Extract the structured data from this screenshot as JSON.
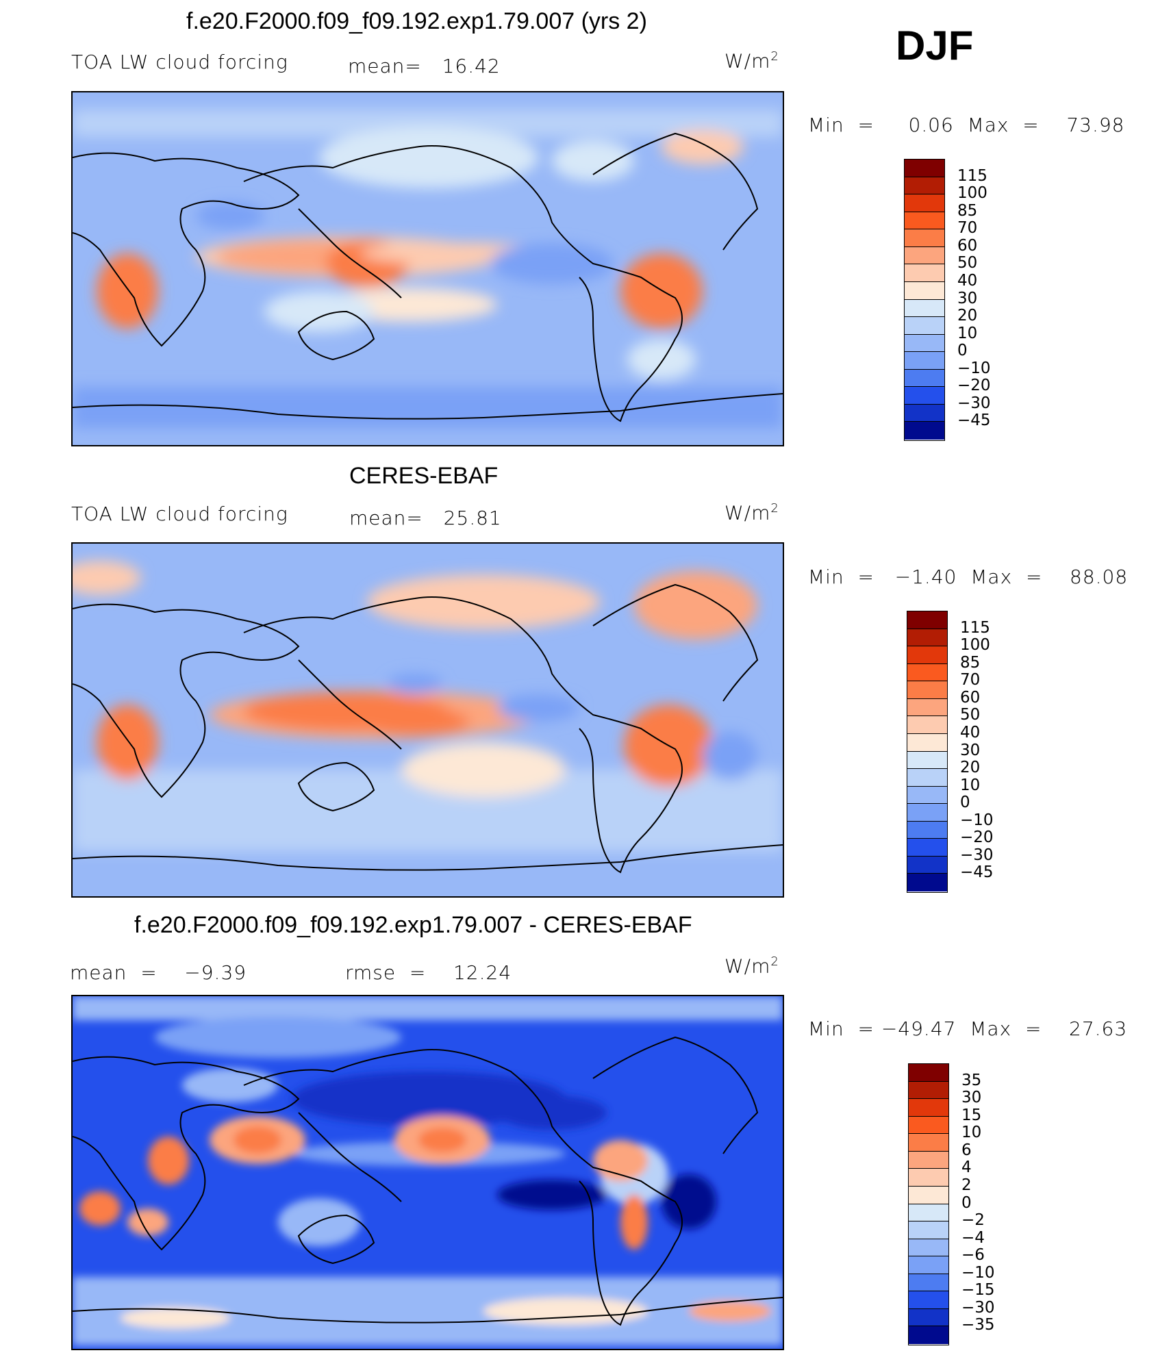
{
  "season": "DJF",
  "panels": [
    {
      "id": "model",
      "title": "f.e20.F2000.f09_f09.192.exp1.79.007 (yrs 2)",
      "left_label": "TOA LW cloud forcing",
      "mid_label": "mean=   16.42",
      "units": "W/m",
      "units_sup": "2",
      "minmax": "Min  =     0.06  Max  =    73.98",
      "colorbar": {
        "labels": [
          "115",
          "100",
          "85",
          "70",
          "60",
          "50",
          "40",
          "30",
          "20",
          "10",
          "0",
          "−10",
          "−20",
          "−30",
          "−45"
        ],
        "colors": [
          "#7f0000",
          "#b21d04",
          "#e2380b",
          "#fa5a1f",
          "#fb7d47",
          "#fca57e",
          "#fdcbb0",
          "#fde8d6",
          "#d7e8f8",
          "#b9d2f8",
          "#98b8f7",
          "#7aa1f6",
          "#4d7cf1",
          "#2450ec",
          "#1233c8",
          "#000a8e"
        ]
      }
    },
    {
      "id": "obs",
      "title": "CERES-EBAF",
      "left_label": "TOA LW cloud forcing",
      "mid_label": "mean=   25.81",
      "units": "W/m",
      "units_sup": "2",
      "minmax": "Min  =   −1.40  Max  =    88.08",
      "colorbar": {
        "labels": [
          "115",
          "100",
          "85",
          "70",
          "60",
          "50",
          "40",
          "30",
          "20",
          "10",
          "0",
          "−10",
          "−20",
          "−30",
          "−45"
        ],
        "colors": [
          "#7f0000",
          "#b21d04",
          "#e2380b",
          "#fa5a1f",
          "#fb7d47",
          "#fca57e",
          "#fdcbb0",
          "#fde8d6",
          "#d7e8f8",
          "#b9d2f8",
          "#98b8f7",
          "#7aa1f6",
          "#4d7cf1",
          "#2450ec",
          "#1233c8",
          "#000a8e"
        ]
      }
    },
    {
      "id": "diff",
      "title": "f.e20.F2000.f09_f09.192.exp1.79.007 - CERES-EBAF",
      "left_label": "mean  =    −9.39",
      "mid_label": "rmse  =    12.24",
      "units": "W/m",
      "units_sup": "2",
      "minmax": "Min  = −49.47  Max  =    27.63",
      "colorbar": {
        "labels": [
          "35",
          "30",
          "15",
          "10",
          "6",
          "4",
          "2",
          "0",
          "−2",
          "−4",
          "−6",
          "−10",
          "−15",
          "−30",
          "−35"
        ],
        "colors": [
          "#7f0000",
          "#b21d04",
          "#e2380b",
          "#fa5a1f",
          "#fb7d47",
          "#fca57e",
          "#fdcbb0",
          "#fde8d6",
          "#d7e8f8",
          "#b9d2f8",
          "#98b8f7",
          "#7aa1f6",
          "#4d7cf1",
          "#2450ec",
          "#1233c8",
          "#000a8e"
        ]
      }
    }
  ]
}
